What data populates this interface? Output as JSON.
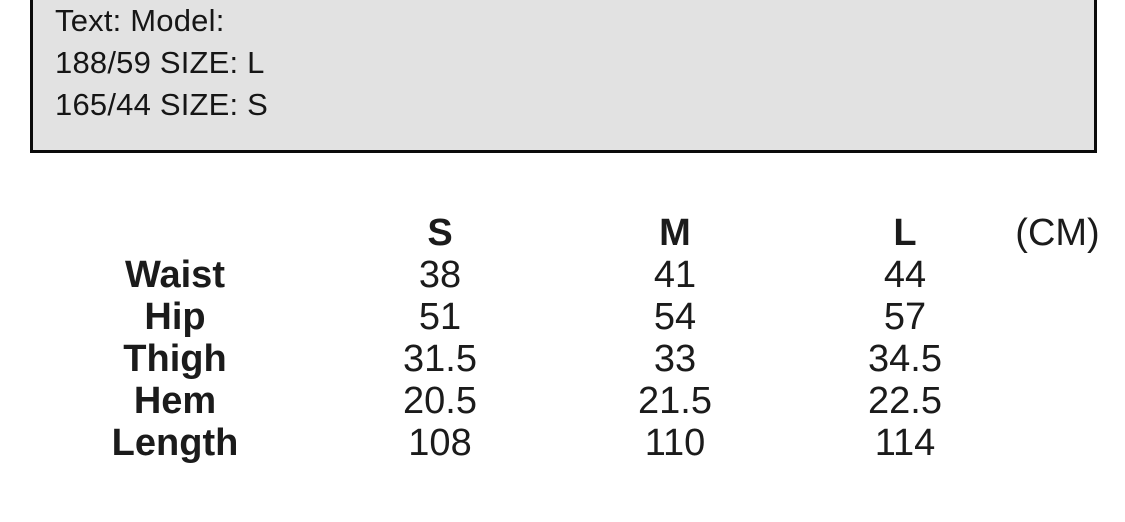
{
  "note_box": {
    "lines": [
      "Text: Model:",
      "188/59 SIZE: L",
      "165/44 SIZE: S"
    ]
  },
  "table": {
    "unit_label": "(CM)",
    "columns": [
      "S",
      "M",
      "L"
    ],
    "rows": [
      {
        "label": "Waist",
        "values": [
          "38",
          "41",
          "44"
        ]
      },
      {
        "label": "Hip",
        "values": [
          "51",
          "54",
          "57"
        ]
      },
      {
        "label": "Thigh",
        "values": [
          "31.5",
          "33",
          "34.5"
        ]
      },
      {
        "label": "Hem",
        "values": [
          "20.5",
          "21.5",
          "22.5"
        ]
      },
      {
        "label": "Length",
        "values": [
          "108",
          "110",
          "114"
        ]
      }
    ]
  },
  "colors": {
    "background": "#ffffff",
    "note_box_fill": "#e2e2e2",
    "note_box_border": "#0a0a0a",
    "text": "#1b1b1b"
  }
}
